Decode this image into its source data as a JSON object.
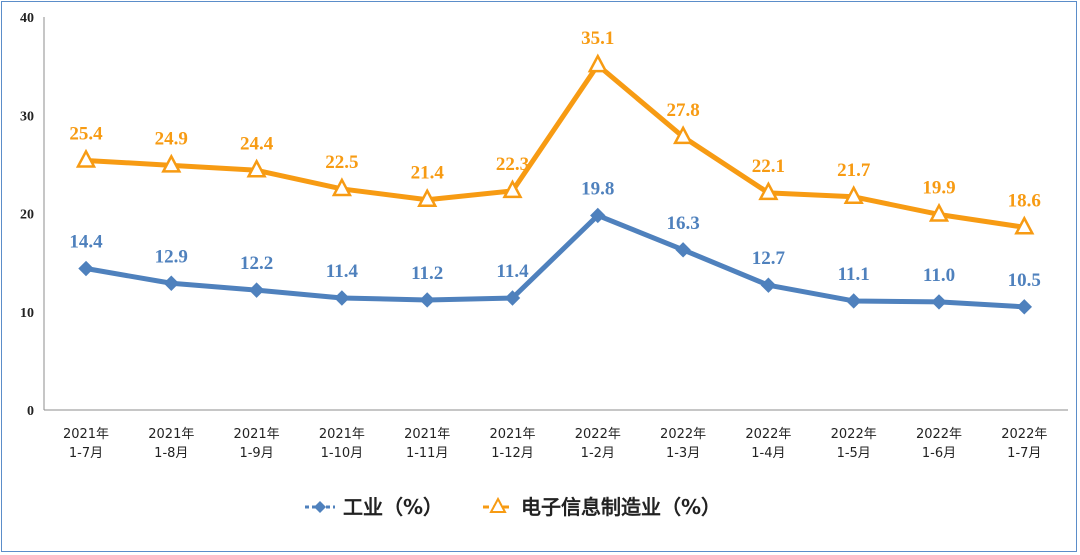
{
  "chart_data": {
    "type": "line",
    "categories": [
      [
        "2021年",
        "1-7月"
      ],
      [
        "2021年",
        "1-8月"
      ],
      [
        "2021年",
        "1-9月"
      ],
      [
        "2021年",
        "1-10月"
      ],
      [
        "2021年",
        "1-11月"
      ],
      [
        "2021年",
        "1-12月"
      ],
      [
        "2022年",
        "1-2月"
      ],
      [
        "2022年",
        "1-3月"
      ],
      [
        "2022年",
        "1-4月"
      ],
      [
        "2022年",
        "1-5月"
      ],
      [
        "2022年",
        "1-6月"
      ],
      [
        "2022年",
        "1-7月"
      ]
    ],
    "series": [
      {
        "name": "工业（%）",
        "color": "#4f81bd",
        "marker": "diamond",
        "values": [
          14.4,
          12.9,
          12.2,
          11.4,
          11.2,
          11.4,
          19.8,
          16.3,
          12.7,
          11.1,
          11.0,
          10.5
        ],
        "labels": [
          "14.4",
          "12.9",
          "12.2",
          "11.4",
          "11.2",
          "11.4",
          "19.8",
          "16.3",
          "12.7",
          "11.1",
          "11.0",
          "10.5"
        ]
      },
      {
        "name": "电子信息制造业（%）",
        "color": "#f79b13",
        "marker": "triangle",
        "values": [
          25.4,
          24.9,
          24.4,
          22.5,
          21.4,
          22.3,
          35.1,
          27.8,
          22.1,
          21.7,
          19.9,
          18.6
        ],
        "labels": [
          "25.4",
          "24.9",
          "24.4",
          "22.5",
          "21.4",
          "22.3",
          "35.1",
          "27.8",
          "22.1",
          "21.7",
          "19.9",
          "18.6"
        ]
      }
    ],
    "y_ticks": [
      "0",
      "10",
      "20",
      "30",
      "40"
    ],
    "ylim": [
      0,
      40
    ],
    "grid": false,
    "legend_position": "bottom"
  }
}
